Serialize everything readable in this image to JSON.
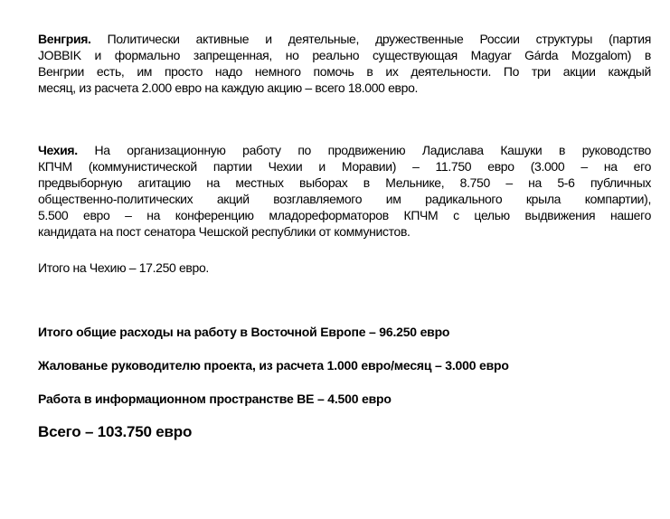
{
  "hungary": {
    "heading": "Венгрия.",
    "lines": [
      " Политически активные и деятельные, дружественные России структуры (партия",
      "JOBBIK и формально запрещенная, но реально существующая Magyar Gárda Mozgalom) в",
      "Венгрии есть, им просто надо немного помочь в их деятельности. По три акции каждый",
      "месяц, из расчета 2.000 евро на каждую акцию – всего 18.000 евро."
    ]
  },
  "czech": {
    "heading": "Чехия.",
    "lines": [
      "На организационную работу по продвижению Ладислава Кашуки в руководство",
      "КПЧМ (коммунистической партии Чехии и Моравии) – 11.750 евро (3.000 – на его",
      "предвыборную агитацию на местных выборах в Мельнике, 8.750 – на 5-6 публичных",
      "общественно-политических акций возглавляемого им радикального крыла компартии),",
      "5.500 евро – на конференцию младореформаторов КПЧМ с целью выдвижения нашего",
      "кандидата на пост сенатора Чешской республики от коммунистов."
    ],
    "subtotal": "Итого на Чехию – 17.250 евро."
  },
  "summary": {
    "east_europe_total": "Итого общие расходы на работу в Восточной Европе – 96.250 евро",
    "manager_salary": "Жалованье руководителю проекта, из расчета 1.000 евро/месяц – 3.000 евро",
    "info_space": "Работа в информационном пространстве ВЕ – 4.500 евро",
    "grand_total": "Всего – 103.750 евро"
  }
}
